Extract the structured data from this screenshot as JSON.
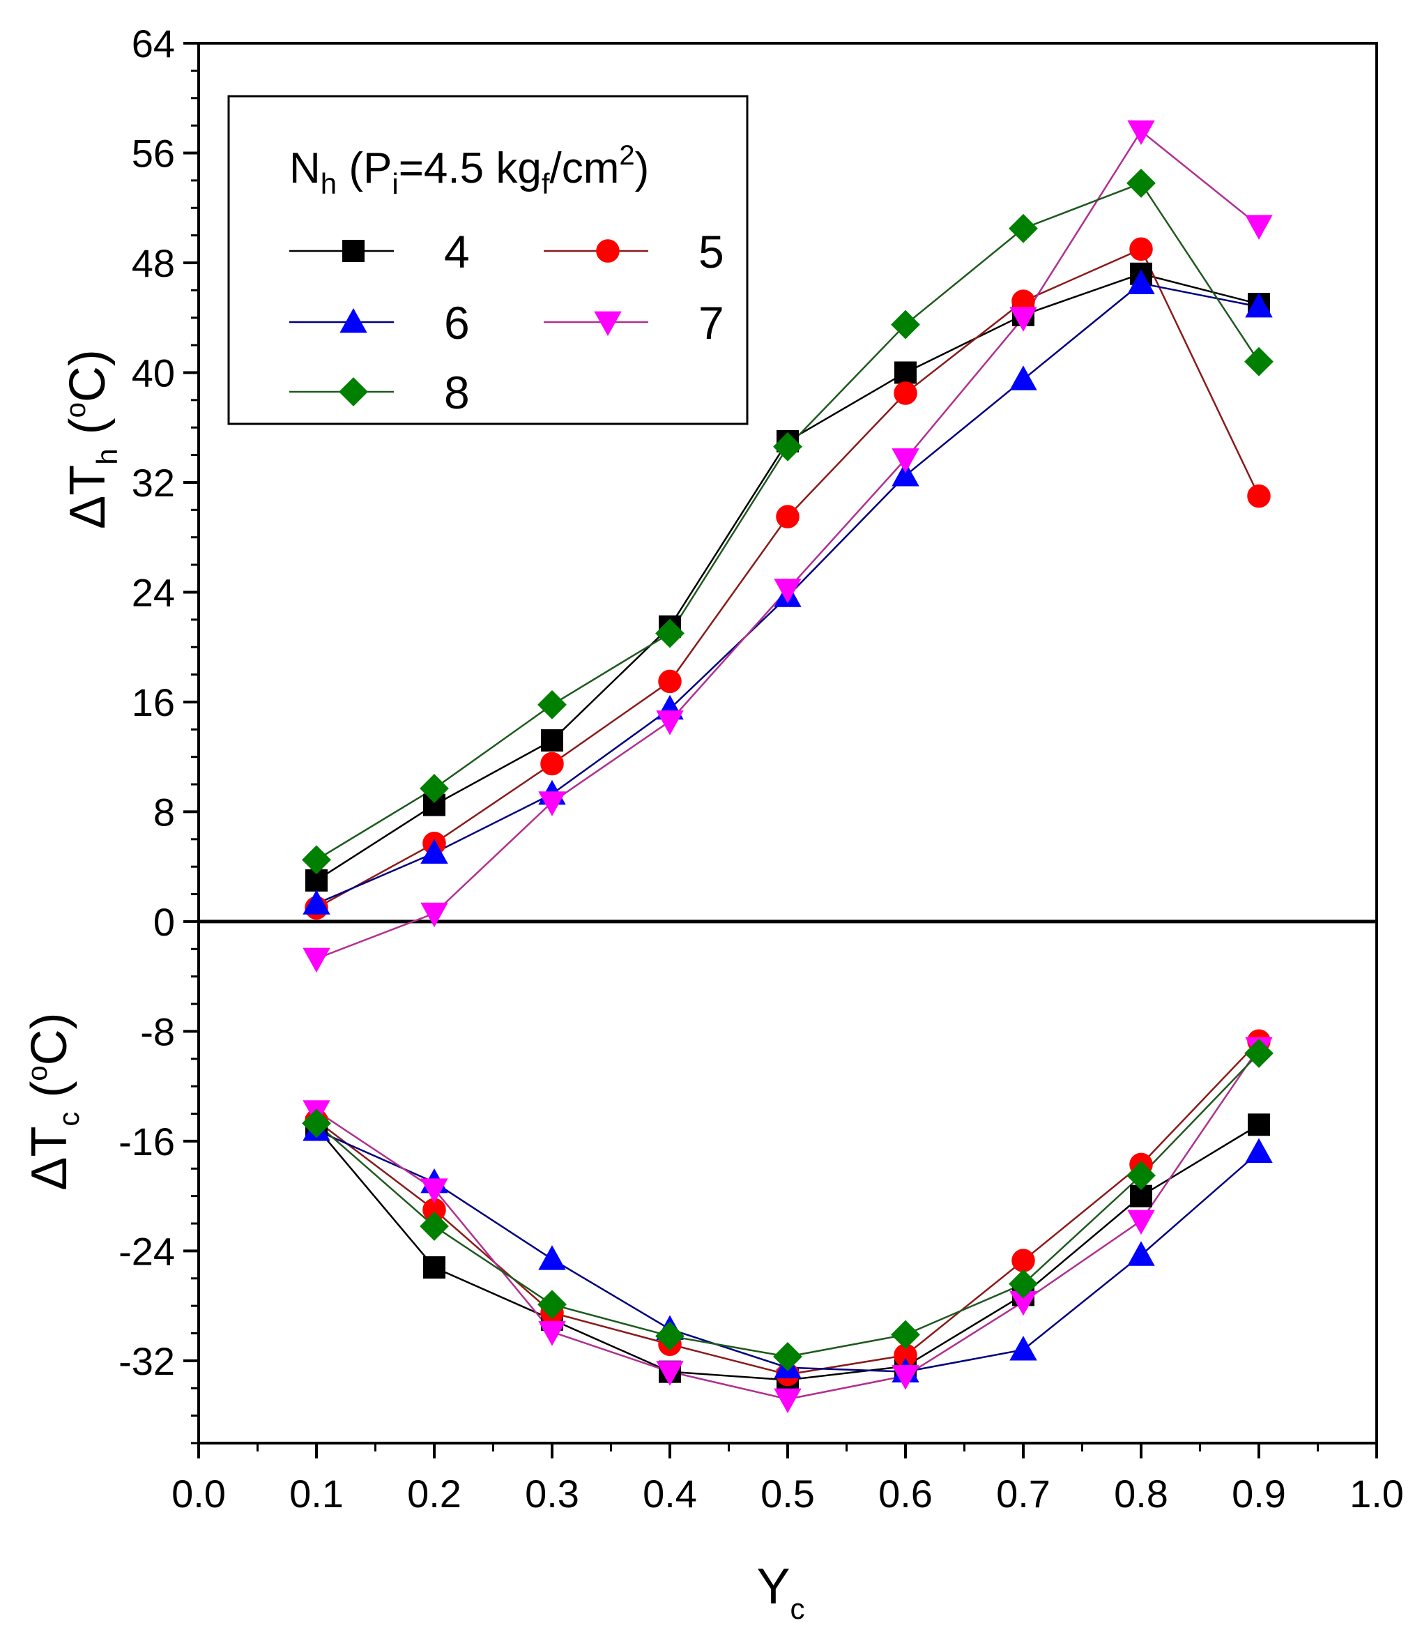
{
  "chart_data": {
    "type": "scatter",
    "xlabel_main": "Y",
    "xlabel_sub": "c",
    "ylabel_top": {
      "prefix": "ΔT",
      "sub": "h",
      "unit_open": " (",
      "deg": "o",
      "unit_close": "C)"
    },
    "ylabel_bottom": {
      "prefix": "ΔT",
      "sub": "c",
      "unit_open": " (",
      "deg": "o",
      "unit_close": "C)"
    },
    "xlim": [
      0.0,
      1.0
    ],
    "ylim": [
      -38,
      64
    ],
    "x_ticks": [
      "0.0",
      "0.1",
      "0.2",
      "0.3",
      "0.4",
      "0.5",
      "0.6",
      "0.7",
      "0.8",
      "0.9",
      "1.0"
    ],
    "y_ticks": [
      "64",
      "56",
      "48",
      "40",
      "32",
      "24",
      "16",
      "8",
      "0",
      "-8",
      "-16",
      "-24",
      "-32"
    ],
    "y_tick_values": [
      64,
      56,
      48,
      40,
      32,
      24,
      16,
      8,
      0,
      -8,
      -16,
      -24,
      -32
    ],
    "legend": {
      "title": {
        "n": "N",
        "n_sub": "h",
        "p_open": " (P",
        "p_sub": "i",
        "p_mid": "=4.5 kg",
        "p_sub2": "f",
        "p_unit": "/cm",
        "p_sup": "2",
        "p_close": ")"
      },
      "position": "top-left"
    },
    "x": [
      0.1,
      0.2,
      0.3,
      0.4,
      0.5,
      0.6,
      0.7,
      0.8,
      0.9
    ],
    "series": [
      {
        "name": "4",
        "marker": "square",
        "color": "#000000",
        "line_color": "#000000",
        "hot": [
          3.0,
          8.5,
          13.2,
          21.5,
          35.0,
          40.0,
          44.2,
          47.2,
          45.0
        ],
        "cold": [
          -15.0,
          -25.2,
          -29.0,
          -32.8,
          -33.4,
          -32.4,
          -27.2,
          -20.0,
          -14.8
        ]
      },
      {
        "name": "5",
        "marker": "circle",
        "color": "#ff0000",
        "line_color": "#8b1a1a",
        "hot": [
          1.0,
          5.7,
          11.5,
          17.5,
          29.5,
          38.5,
          45.2,
          49.0,
          31.0
        ],
        "cold": [
          -14.5,
          -21.0,
          -28.5,
          -30.8,
          -33.0,
          -31.6,
          -24.7,
          -17.7,
          -8.7
        ]
      },
      {
        "name": "6",
        "marker": "triangle-up",
        "color": "#0000ff",
        "line_color": "#000080",
        "hot": [
          1.3,
          5.0,
          9.3,
          15.5,
          23.7,
          32.5,
          39.5,
          46.5,
          44.8
        ],
        "cold": [
          -15.2,
          -19.0,
          -24.6,
          -29.7,
          -32.5,
          -32.8,
          -31.2,
          -24.3,
          -16.8
        ]
      },
      {
        "name": "7",
        "marker": "triangle-down",
        "color": "#ff00ff",
        "line_color": "#b03090",
        "hot": [
          -2.7,
          0.6,
          8.7,
          14.6,
          24.2,
          33.7,
          44.0,
          57.6,
          50.7
        ],
        "cold": [
          -13.8,
          -19.5,
          -29.9,
          -32.8,
          -34.8,
          -33.1,
          -27.7,
          -21.8,
          -9.2
        ]
      },
      {
        "name": "8",
        "marker": "diamond",
        "color": "#008000",
        "line_color": "#1e5a1e",
        "hot": [
          4.5,
          9.7,
          15.8,
          21.0,
          34.6,
          43.5,
          50.5,
          53.8,
          40.8
        ],
        "cold": [
          -14.7,
          -22.2,
          -27.9,
          -30.2,
          -31.7,
          -30.1,
          -26.4,
          -18.5,
          -9.6
        ]
      }
    ]
  }
}
